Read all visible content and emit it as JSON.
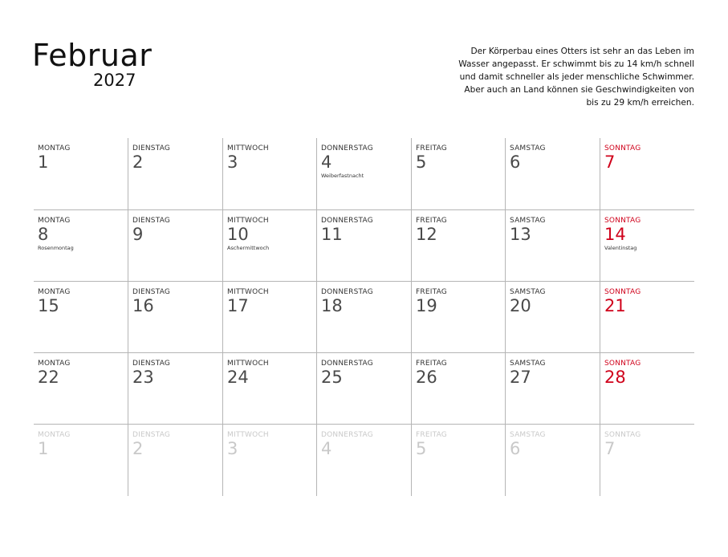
{
  "header": {
    "month": "Februar",
    "year": "2027",
    "note": "Der Körperbau eines Otters ist sehr an das Leben im Wasser angepasst. Er schwimmt bis zu 14 km/h schnell und damit schneller als jeder menschliche Schwimmer. Aber auch an Land können sie Geschwindigkeiten von bis zu 29 km/h erreichen."
  },
  "day_names": [
    "MONTAG",
    "DIENSTAG",
    "MITTWOCH",
    "DONNERSTAG",
    "FREITAG",
    "SAMSTAG",
    "SONNTAG"
  ],
  "weeks": [
    {
      "faded": false,
      "days": [
        {
          "num": "1",
          "holiday": ""
        },
        {
          "num": "2",
          "holiday": ""
        },
        {
          "num": "3",
          "holiday": ""
        },
        {
          "num": "4",
          "holiday": "Weiberfastnacht"
        },
        {
          "num": "5",
          "holiday": ""
        },
        {
          "num": "6",
          "holiday": ""
        },
        {
          "num": "7",
          "holiday": ""
        }
      ]
    },
    {
      "faded": false,
      "days": [
        {
          "num": "8",
          "holiday": "Rosenmontag"
        },
        {
          "num": "9",
          "holiday": ""
        },
        {
          "num": "10",
          "holiday": "Aschermittwoch"
        },
        {
          "num": "11",
          "holiday": ""
        },
        {
          "num": "12",
          "holiday": ""
        },
        {
          "num": "13",
          "holiday": ""
        },
        {
          "num": "14",
          "holiday": "Valentinstag"
        }
      ]
    },
    {
      "faded": false,
      "days": [
        {
          "num": "15",
          "holiday": ""
        },
        {
          "num": "16",
          "holiday": ""
        },
        {
          "num": "17",
          "holiday": ""
        },
        {
          "num": "18",
          "holiday": ""
        },
        {
          "num": "19",
          "holiday": ""
        },
        {
          "num": "20",
          "holiday": ""
        },
        {
          "num": "21",
          "holiday": ""
        }
      ]
    },
    {
      "faded": false,
      "days": [
        {
          "num": "22",
          "holiday": ""
        },
        {
          "num": "23",
          "holiday": ""
        },
        {
          "num": "24",
          "holiday": ""
        },
        {
          "num": "25",
          "holiday": ""
        },
        {
          "num": "26",
          "holiday": ""
        },
        {
          "num": "27",
          "holiday": ""
        },
        {
          "num": "28",
          "holiday": ""
        }
      ]
    },
    {
      "faded": true,
      "days": [
        {
          "num": "1",
          "holiday": ""
        },
        {
          "num": "2",
          "holiday": ""
        },
        {
          "num": "3",
          "holiday": ""
        },
        {
          "num": "4",
          "holiday": ""
        },
        {
          "num": "5",
          "holiday": ""
        },
        {
          "num": "6",
          "holiday": ""
        },
        {
          "num": "7",
          "holiday": ""
        }
      ]
    }
  ],
  "colors": {
    "sunday": "#d0021b",
    "faded": "#c9c9c9",
    "gridline": "#b5b5b5"
  }
}
